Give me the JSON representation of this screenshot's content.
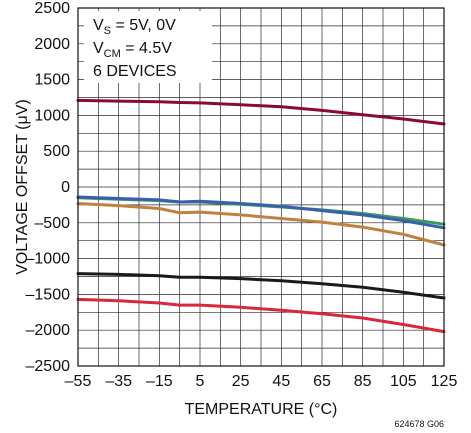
{
  "chart_data": {
    "type": "line",
    "xlabel": "TEMPERATURE (°C)",
    "ylabel": "VOLTAGE OFFSET (μV)",
    "xlim": [
      -55,
      125
    ],
    "ylim": [
      -2500,
      2500
    ],
    "x_ticks": [
      -55,
      -35,
      -15,
      5,
      25,
      45,
      65,
      85,
      105,
      125
    ],
    "y_ticks": [
      2500,
      2000,
      1500,
      1000,
      500,
      0,
      -500,
      -1000,
      -1500,
      -2000,
      -2500
    ],
    "x_tick_labels": [
      "–55",
      "–35",
      "–15",
      "5",
      "25",
      "45",
      "65",
      "85",
      "105",
      "125"
    ],
    "y_tick_labels": [
      "2500",
      "2000",
      "1500",
      "1000",
      "500",
      "0",
      "–500",
      "–1000",
      "–1500",
      "–2000",
      "–2500"
    ],
    "grid": true,
    "annotations": {
      "line1_main": "V",
      "line1_sub": "S",
      "line1_rest": " = 5V, 0V",
      "line2_main": "V",
      "line2_sub": "CM",
      "line2_rest": " = 4.5V",
      "line3": "6 DEVICES"
    },
    "figure_id": "624678 G06",
    "series": [
      {
        "color": "#8b0a32",
        "x": [
          -55,
          -35,
          -15,
          -5,
          5,
          25,
          45,
          65,
          85,
          105,
          125
        ],
        "values": [
          1210,
          1200,
          1190,
          1180,
          1175,
          1150,
          1120,
          1070,
          1010,
          950,
          880
        ]
      },
      {
        "color": "#3a9a5a",
        "x": [
          -55,
          -35,
          -15,
          -5,
          5,
          25,
          45,
          65,
          85,
          105,
          125
        ],
        "values": [
          -150,
          -170,
          -190,
          -210,
          -210,
          -240,
          -280,
          -320,
          -370,
          -440,
          -520
        ]
      },
      {
        "color": "#3a5fb0",
        "x": [
          -55,
          -35,
          -15,
          -5,
          5,
          25,
          45,
          65,
          85,
          105,
          125
        ],
        "values": [
          -140,
          -160,
          -180,
          -210,
          -200,
          -230,
          -270,
          -330,
          -390,
          -470,
          -570
        ]
      },
      {
        "color": "#c08040",
        "x": [
          -55,
          -35,
          -15,
          -5,
          5,
          25,
          45,
          65,
          85,
          105,
          125
        ],
        "values": [
          -230,
          -260,
          -300,
          -360,
          -350,
          -390,
          -440,
          -490,
          -560,
          -660,
          -810
        ]
      },
      {
        "color": "#1a1a1a",
        "x": [
          -55,
          -35,
          -15,
          -5,
          5,
          25,
          45,
          65,
          85,
          105,
          125
        ],
        "values": [
          -1210,
          -1220,
          -1240,
          -1260,
          -1260,
          -1280,
          -1310,
          -1350,
          -1400,
          -1470,
          -1550
        ]
      },
      {
        "color": "#d8283a",
        "x": [
          -55,
          -35,
          -15,
          -5,
          5,
          25,
          45,
          65,
          85,
          105,
          125
        ],
        "values": [
          -1570,
          -1590,
          -1620,
          -1650,
          -1650,
          -1680,
          -1720,
          -1770,
          -1830,
          -1920,
          -2020
        ]
      }
    ]
  }
}
